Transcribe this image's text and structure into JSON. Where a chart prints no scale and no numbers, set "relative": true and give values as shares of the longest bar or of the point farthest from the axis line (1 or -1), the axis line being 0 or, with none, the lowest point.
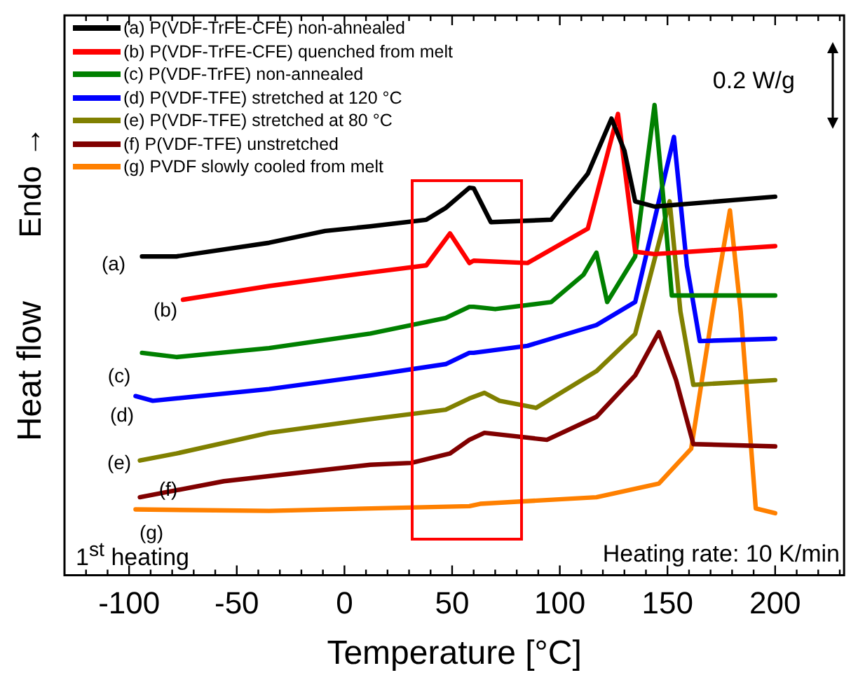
{
  "chart_data": {
    "type": "line",
    "relative": true,
    "xlabel": "Temperature [°C]",
    "ylabel": "Heat flow",
    "legend": "top left",
    "grid": false,
    "marker": "none",
    "tick_labels": "x",
    "xlim": [
      -130,
      232
    ],
    "xticks": [
      {
        "value": -120,
        "label": null
      },
      {
        "value": -110,
        "label": null
      },
      -100,
      {
        "value": -90,
        "label": null
      },
      {
        "value": -80,
        "label": null
      },
      {
        "value": -70,
        "label": null
      },
      {
        "value": -60,
        "label": null
      },
      -50,
      {
        "value": -40,
        "label": null
      },
      {
        "value": -30,
        "label": null
      },
      {
        "value": -20,
        "label": null
      },
      {
        "value": -10,
        "label": null
      },
      0,
      {
        "value": 10,
        "label": null
      },
      {
        "value": 20,
        "label": null
      },
      {
        "value": 30,
        "label": null
      },
      {
        "value": 40,
        "label": null
      },
      50,
      {
        "value": 60,
        "label": null
      },
      {
        "value": 70,
        "label": null
      },
      {
        "value": 80,
        "label": null
      },
      {
        "value": 90,
        "label": null
      },
      100,
      {
        "value": 110,
        "label": null
      },
      {
        "value": 120,
        "label": null
      },
      {
        "value": 130,
        "label": null
      },
      {
        "value": 140,
        "label": null
      },
      150,
      {
        "value": 160,
        "label": null
      },
      {
        "value": 170,
        "label": null
      },
      {
        "value": 180,
        "label": null
      },
      {
        "value": 190,
        "label": null
      },
      200,
      {
        "value": 210,
        "label": null
      },
      {
        "value": 220,
        "label": null
      },
      {
        "value": 230,
        "label": null
      }
    ],
    "series": [
      {
        "name": "(a) P(VDF-TrFE-CFE) non-annealed",
        "color": "#000000",
        "x": [
          -94,
          -78,
          -35,
          -9,
          12,
          38,
          47,
          58,
          60,
          68,
          96,
          113,
          124,
          130,
          135,
          144,
          200
        ],
        "values": [
          0.678,
          0.678,
          0.707,
          0.732,
          0.742,
          0.756,
          0.781,
          0.824,
          0.823,
          0.751,
          0.756,
          0.854,
          0.971,
          0.903,
          0.795,
          0.784,
          0.805
        ]
      },
      {
        "name": "(b) P(VDF-TrFE-CFE) quenched from melt",
        "color": "#ff0000",
        "x": [
          -75,
          -35,
          12,
          38,
          49,
          58,
          60,
          85,
          113,
          127,
          135,
          144,
          200
        ],
        "values": [
          0.586,
          0.615,
          0.644,
          0.659,
          0.727,
          0.664,
          0.669,
          0.664,
          0.737,
          0.981,
          0.688,
          0.683,
          0.7
        ]
      },
      {
        "name": "(c) P(VDF-TrFE) non-annealed",
        "color": "#008000",
        "x": [
          -94,
          -78,
          -35,
          12,
          47,
          58,
          60,
          70,
          96,
          111,
          117,
          122,
          135,
          144,
          149,
          152,
          200
        ],
        "values": [
          0.473,
          0.464,
          0.483,
          0.514,
          0.547,
          0.571,
          0.571,
          0.566,
          0.581,
          0.639,
          0.686,
          0.581,
          0.678,
          1,
          0.756,
          0.595,
          0.595
        ]
      },
      {
        "name": "(d) P(VDF-TFE) stretched at 120 °C",
        "color": "#0000ff",
        "x": [
          -97,
          -89,
          -35,
          12,
          47,
          58,
          60,
          85,
          117,
          135,
          144,
          153,
          159,
          165,
          200
        ],
        "values": [
          0.381,
          0.371,
          0.396,
          0.425,
          0.449,
          0.473,
          0.473,
          0.488,
          0.532,
          0.581,
          0.756,
          0.932,
          0.659,
          0.498,
          0.503
        ]
      },
      {
        "name": "(e) P(VDF-TFE) stretched at 80 °C",
        "color": "#808000",
        "x": [
          -95,
          -78,
          -35,
          12,
          47,
          58,
          65,
          72,
          89,
          117,
          135,
          151,
          156,
          162,
          200
        ],
        "values": [
          0.244,
          0.259,
          0.303,
          0.332,
          0.352,
          0.376,
          0.388,
          0.371,
          0.356,
          0.434,
          0.513,
          0.795,
          0.561,
          0.405,
          0.415
        ]
      },
      {
        "name": "(f)  P(VDF-TFE) unstretched",
        "color": "#800000",
        "x": [
          -95,
          -56,
          12,
          31,
          49,
          58,
          65,
          94,
          117,
          135,
          146,
          154,
          162,
          200
        ],
        "values": [
          0.166,
          0.2,
          0.235,
          0.239,
          0.259,
          0.288,
          0.303,
          0.288,
          0.337,
          0.425,
          0.517,
          0.415,
          0.279,
          0.274
        ]
      },
      {
        "name": "(g) PVDF slowly cooled from melt",
        "color": "#ff8000",
        "x": [
          -97,
          -35,
          58,
          63,
          117,
          146,
          161,
          171,
          179,
          184,
          191,
          200
        ],
        "values": [
          0.14,
          0.137,
          0.147,
          0.152,
          0.166,
          0.195,
          0.269,
          0.561,
          0.776,
          0.561,
          0.142,
          0.132
        ]
      }
    ],
    "annotations": [
      "(a)",
      "(b)",
      "(c)",
      "(d)",
      "(e)",
      "(f)",
      "(g)",
      "Endo →",
      "0.2 W/g",
      "1$^{st}$ heating",
      "Heating rate: 10 K/min"
    ]
  }
}
